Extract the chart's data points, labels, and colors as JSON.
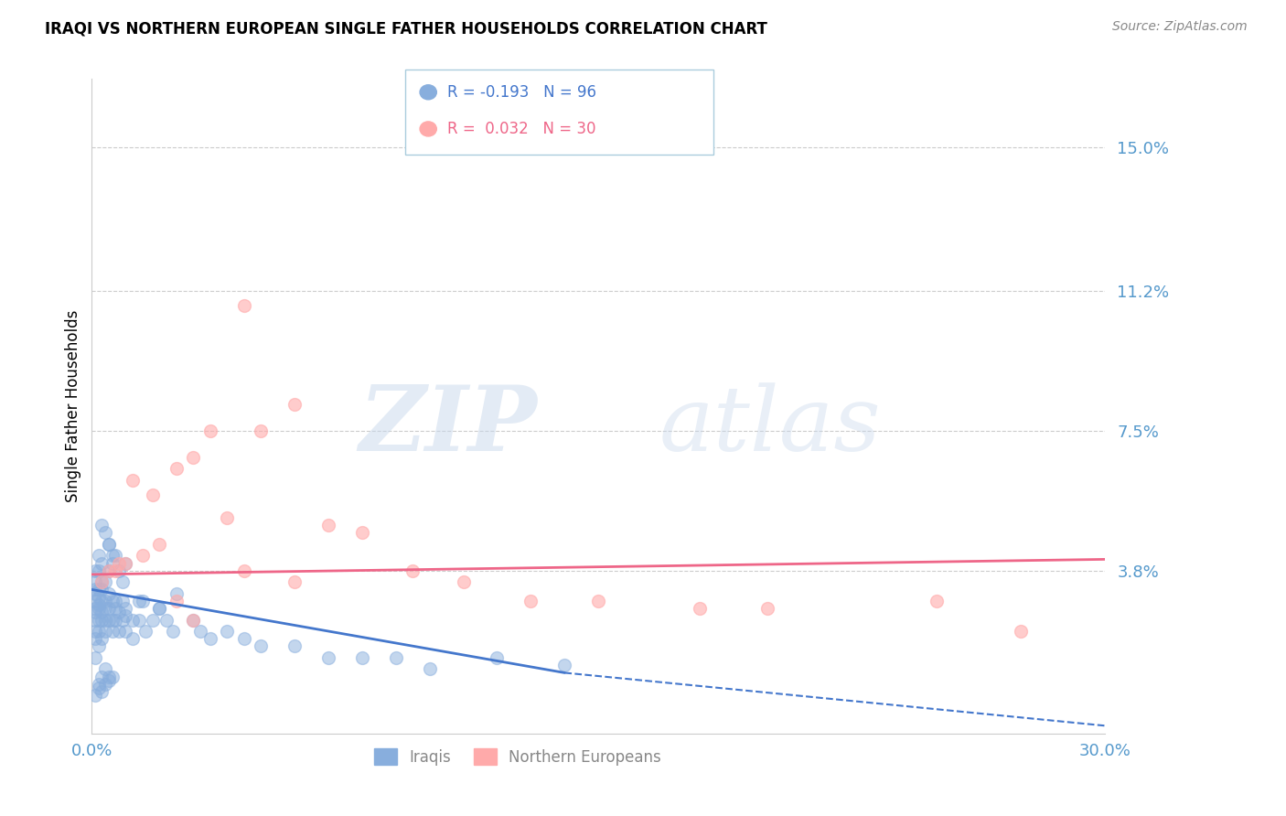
{
  "title": "IRAQI VS NORTHERN EUROPEAN SINGLE FATHER HOUSEHOLDS CORRELATION CHART",
  "source": "Source: ZipAtlas.com",
  "ylabel": "Single Father Households",
  "xlim": [
    0.0,
    0.3
  ],
  "ylim": [
    -0.005,
    0.168
  ],
  "yticks": [
    0.038,
    0.075,
    0.112,
    0.15
  ],
  "ytick_labels": [
    "3.8%",
    "7.5%",
    "11.2%",
    "15.0%"
  ],
  "xticks": [
    0.0,
    0.3
  ],
  "xtick_labels": [
    "0.0%",
    "30.0%"
  ],
  "legend_label1": "Iraqis",
  "legend_label2": "Northern Europeans",
  "blue_color": "#88AEDD",
  "pink_color": "#FFAAAA",
  "trend_blue": "#4477CC",
  "trend_pink": "#EE6688",
  "axis_color": "#5599CC",
  "grid_color": "#CCCCCC",
  "watermark_zip": "ZIP",
  "watermark_atlas": "atlas",
  "blue_trend_x0": 0.0,
  "blue_trend_y0": 0.033,
  "blue_trend_x1": 0.14,
  "blue_trend_y1": 0.011,
  "blue_trend_x2": 0.3,
  "blue_trend_y2": -0.003,
  "pink_trend_x0": 0.0,
  "pink_trend_y0": 0.037,
  "pink_trend_x1": 0.3,
  "pink_trend_y1": 0.041,
  "iraqi_x": [
    0.001,
    0.001,
    0.001,
    0.001,
    0.001,
    0.001,
    0.001,
    0.001,
    0.001,
    0.001,
    0.002,
    0.002,
    0.002,
    0.002,
    0.002,
    0.002,
    0.002,
    0.002,
    0.003,
    0.003,
    0.003,
    0.003,
    0.003,
    0.003,
    0.004,
    0.004,
    0.004,
    0.004,
    0.004,
    0.005,
    0.005,
    0.005,
    0.005,
    0.006,
    0.006,
    0.006,
    0.007,
    0.007,
    0.007,
    0.008,
    0.008,
    0.009,
    0.009,
    0.01,
    0.01,
    0.01,
    0.012,
    0.012,
    0.014,
    0.014,
    0.016,
    0.018,
    0.02,
    0.022,
    0.024,
    0.03,
    0.032,
    0.035,
    0.04,
    0.045,
    0.05,
    0.06,
    0.07,
    0.08,
    0.09,
    0.1,
    0.12,
    0.14,
    0.005,
    0.006,
    0.007,
    0.008,
    0.009,
    0.01,
    0.003,
    0.004,
    0.005,
    0.006,
    0.001,
    0.002,
    0.003,
    0.015,
    0.02,
    0.025,
    0.002,
    0.003,
    0.004,
    0.005,
    0.001,
    0.002,
    0.003,
    0.004,
    0.005,
    0.006
  ],
  "iraqi_y": [
    0.028,
    0.03,
    0.032,
    0.025,
    0.022,
    0.033,
    0.035,
    0.027,
    0.02,
    0.015,
    0.029,
    0.031,
    0.028,
    0.025,
    0.033,
    0.038,
    0.022,
    0.018,
    0.027,
    0.03,
    0.025,
    0.033,
    0.035,
    0.02,
    0.03,
    0.028,
    0.025,
    0.035,
    0.022,
    0.028,
    0.032,
    0.025,
    0.038,
    0.03,
    0.025,
    0.022,
    0.028,
    0.03,
    0.025,
    0.027,
    0.022,
    0.03,
    0.025,
    0.026,
    0.028,
    0.022,
    0.025,
    0.02,
    0.03,
    0.025,
    0.022,
    0.025,
    0.028,
    0.025,
    0.022,
    0.025,
    0.022,
    0.02,
    0.022,
    0.02,
    0.018,
    0.018,
    0.015,
    0.015,
    0.015,
    0.012,
    0.015,
    0.013,
    0.045,
    0.04,
    0.042,
    0.038,
    0.035,
    0.04,
    0.05,
    0.048,
    0.045,
    0.042,
    0.038,
    0.042,
    0.04,
    0.03,
    0.028,
    0.032,
    0.008,
    0.01,
    0.012,
    0.01,
    0.005,
    0.007,
    0.006,
    0.008,
    0.009,
    0.01
  ],
  "ne_x": [
    0.045,
    0.06,
    0.035,
    0.05,
    0.025,
    0.03,
    0.012,
    0.018,
    0.007,
    0.01,
    0.015,
    0.02,
    0.07,
    0.08,
    0.095,
    0.11,
    0.13,
    0.15,
    0.18,
    0.2,
    0.003,
    0.005,
    0.008,
    0.04,
    0.25,
    0.275,
    0.06,
    0.045,
    0.025,
    0.03
  ],
  "ne_y": [
    0.108,
    0.082,
    0.075,
    0.075,
    0.065,
    0.068,
    0.062,
    0.058,
    0.038,
    0.04,
    0.042,
    0.045,
    0.05,
    0.048,
    0.038,
    0.035,
    0.03,
    0.03,
    0.028,
    0.028,
    0.035,
    0.038,
    0.04,
    0.052,
    0.03,
    0.022,
    0.035,
    0.038,
    0.03,
    0.025
  ]
}
